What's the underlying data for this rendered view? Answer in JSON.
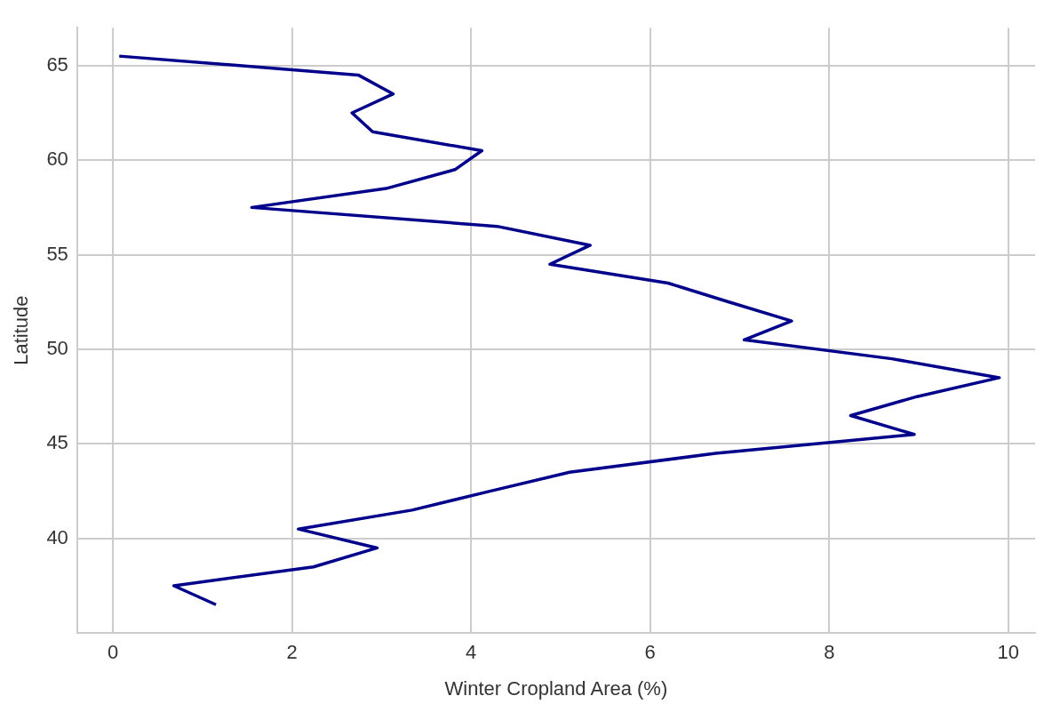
{
  "chart_data": {
    "type": "line",
    "xlabel": "Winter Cropland Area (%)",
    "ylabel": "Latitude",
    "x": [
      1.15,
      0.68,
      2.24,
      2.95,
      2.07,
      3.34,
      4.21,
      5.1,
      6.73,
      8.95,
      8.24,
      8.98,
      9.9,
      8.7,
      7.05,
      7.58,
      6.88,
      6.2,
      4.88,
      5.33,
      4.29,
      1.55,
      3.05,
      3.82,
      4.12,
      2.9,
      2.67,
      3.13,
      2.74,
      0.07
    ],
    "series": [
      {
        "color": "#00008b",
        "values": [
          36.5,
          37.5,
          38.5,
          39.5,
          40.5,
          41.5,
          42.5,
          43.5,
          44.5,
          45.5,
          46.5,
          47.5,
          48.5,
          49.5,
          50.5,
          51.5,
          52.5,
          53.5,
          54.5,
          55.5,
          56.5,
          57.5,
          58.5,
          59.5,
          60.5,
          61.5,
          62.5,
          63.5,
          64.5,
          65.5
        ]
      }
    ],
    "xlim": [
      -0.4,
      10.3
    ],
    "xticks": [
      0,
      2,
      4,
      6,
      8,
      10
    ],
    "ylim": [
      35,
      67
    ],
    "yticks": [
      40,
      45,
      50,
      55,
      60,
      65
    ],
    "grid": true,
    "legend": false,
    "marker": "none",
    "line_style": "solid"
  }
}
